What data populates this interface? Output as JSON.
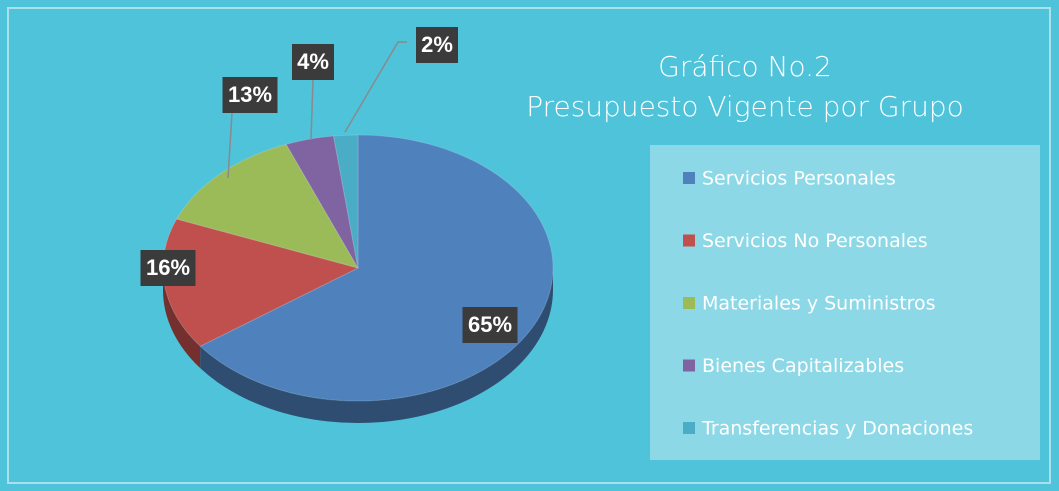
{
  "chart_data": {
    "type": "pie",
    "title": "Gráfico No.2",
    "subtitle": "Presupuesto Vigente por Grupo",
    "categories": [
      "Servicios Personales",
      "Servicios No Personales",
      "Materiales y Suministros",
      "Bienes Capitalizables",
      "Transferencias y Donaciones"
    ],
    "values": [
      65,
      16,
      13,
      4,
      2
    ],
    "value_labels": [
      "65%",
      "16%",
      "13%",
      "4%",
      "2%"
    ],
    "colors": [
      "#4f81bd",
      "#c0504d",
      "#9bbb59",
      "#8064a2",
      "#4bacc6"
    ],
    "legend": "right"
  }
}
